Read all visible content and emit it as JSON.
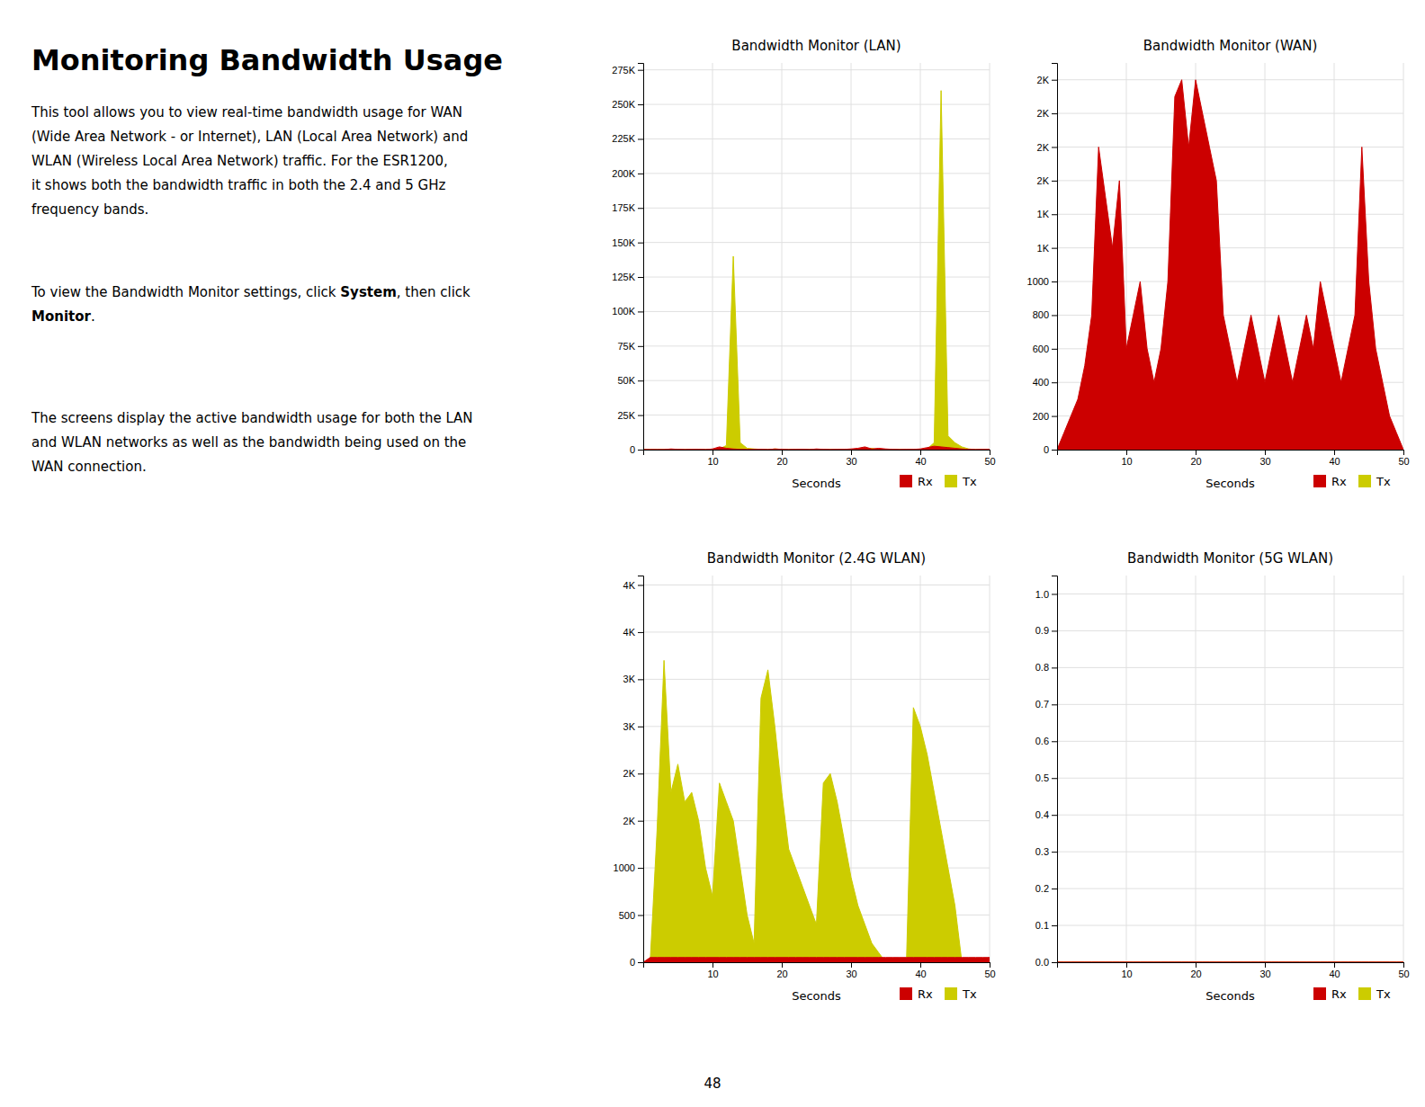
{
  "title": "Monitoring Bandwidth Usage",
  "paragraphs": [
    [
      [
        {
          "text": "This tool allows you to view real-time bandwidth usage for WAN",
          "bold": false
        }
      ],
      [
        {
          "text": "(Wide Area Network - or Internet), LAN (Local Area Network) and",
          "bold": false
        }
      ],
      [
        {
          "text": "WLAN (Wireless Local Area Network) traffic. For the ESR1200,",
          "bold": false
        }
      ],
      [
        {
          "text": "it shows both the bandwidth traffic in both the 2.4 and 5 GHz",
          "bold": false
        }
      ],
      [
        {
          "text": "frequency bands.",
          "bold": false
        }
      ]
    ],
    [
      [
        {
          "text": "To view the Bandwidth Monitor settings, click ",
          "bold": false
        },
        {
          "text": "System",
          "bold": true
        },
        {
          "text": ", then click",
          "bold": false
        }
      ],
      [
        {
          "text": "Monitor",
          "bold": true
        },
        {
          "text": ".",
          "bold": false
        }
      ]
    ],
    [
      [
        {
          "text": "The screens display the active bandwidth usage for both the LAN",
          "bold": false
        }
      ],
      [
        {
          "text": "and WLAN networks as well as the bandwidth being used on the",
          "bold": false
        }
      ],
      [
        {
          "text": "WAN connection.",
          "bold": false
        }
      ]
    ]
  ],
  "page_number": "48",
  "chart_data": [
    {
      "type": "area",
      "title": "Bandwidth Monitor (LAN)",
      "xlabel": "Seconds",
      "x": [
        0,
        1,
        2,
        3,
        4,
        5,
        6,
        7,
        8,
        9,
        10,
        11,
        12,
        13,
        14,
        15,
        16,
        17,
        18,
        19,
        20,
        21,
        22,
        23,
        24,
        25,
        26,
        27,
        28,
        29,
        30,
        31,
        32,
        33,
        34,
        35,
        36,
        37,
        38,
        39,
        40,
        41,
        42,
        43,
        44,
        45,
        46,
        47,
        48,
        49,
        50
      ],
      "series": [
        {
          "name": "Rx",
          "color": "#cc0000",
          "values": [
            0,
            0,
            0,
            0,
            500,
            200,
            0,
            100,
            200,
            0,
            500,
            2000,
            1000,
            500,
            200,
            0,
            100,
            200,
            0,
            500,
            200,
            0,
            100,
            200,
            0,
            500,
            200,
            0,
            100,
            200,
            500,
            1000,
            2000,
            500,
            1000,
            500,
            200,
            0,
            100,
            200,
            500,
            1500,
            2500,
            2000,
            1500,
            1000,
            500,
            200,
            0,
            100,
            200
          ]
        },
        {
          "name": "Tx",
          "color": "#cccc00",
          "values": [
            0,
            0,
            0,
            0,
            0,
            0,
            0,
            0,
            0,
            0,
            0,
            500,
            3000,
            140000,
            5000,
            1000,
            500,
            200,
            0,
            500,
            200,
            0,
            0,
            0,
            0,
            0,
            0,
            0,
            0,
            0,
            0,
            0,
            500,
            1000,
            0,
            0,
            0,
            0,
            0,
            0,
            0,
            500,
            5000,
            260000,
            10000,
            5000,
            2000,
            500,
            0,
            0,
            0
          ]
        }
      ],
      "xlim": [
        0,
        50
      ],
      "xticks": [
        10,
        20,
        30,
        40,
        50
      ],
      "ylim": [
        0,
        280000
      ],
      "yticks": [
        0,
        {
          "value": 25000,
          "label": "25K"
        },
        {
          "value": 50000,
          "label": "50K"
        },
        {
          "value": 75000,
          "label": "75K"
        },
        {
          "value": 100000,
          "label": "100K"
        },
        {
          "value": 125000,
          "label": "125K"
        },
        {
          "value": 150000,
          "label": "150K"
        },
        {
          "value": 175000,
          "label": "175K"
        },
        {
          "value": 200000,
          "label": "200K"
        },
        {
          "value": 225000,
          "label": "225K"
        },
        {
          "value": 250000,
          "label": "250K"
        },
        {
          "value": 275000,
          "label": "275K"
        }
      ],
      "grid": true,
      "legend": "lower right"
    },
    {
      "type": "area",
      "title": "Bandwidth Monitor (WAN)",
      "xlabel": "Seconds",
      "x": [
        0,
        1,
        2,
        3,
        4,
        5,
        6,
        7,
        8,
        9,
        10,
        11,
        12,
        13,
        14,
        15,
        16,
        17,
        18,
        19,
        20,
        21,
        22,
        23,
        24,
        25,
        26,
        27,
        28,
        29,
        30,
        31,
        32,
        33,
        34,
        35,
        36,
        37,
        38,
        39,
        40,
        41,
        42,
        43,
        44,
        45,
        46,
        47,
        48,
        49,
        50
      ],
      "series": [
        {
          "name": "Rx",
          "color": "#cc0000",
          "values": [
            0,
            100,
            200,
            300,
            500,
            800,
            1800,
            1500,
            1200,
            1600,
            600,
            800,
            1000,
            600,
            400,
            600,
            1000,
            2100,
            2200,
            1800,
            2200,
            2000,
            1800,
            1600,
            800,
            600,
            400,
            600,
            800,
            600,
            400,
            600,
            800,
            600,
            400,
            600,
            800,
            600,
            1000,
            800,
            600,
            400,
            600,
            800,
            1800,
            1000,
            600,
            400,
            200,
            100,
            0
          ]
        },
        {
          "name": "Tx",
          "color": "#cccc00",
          "values": [
            0,
            0,
            0,
            50,
            100,
            400,
            400,
            300,
            250,
            250,
            100,
            100,
            100,
            100,
            100,
            100,
            100,
            100,
            200,
            200,
            100,
            100,
            100,
            100,
            100,
            100,
            100,
            100,
            100,
            100,
            100,
            100,
            100,
            100,
            100,
            100,
            100,
            100,
            100,
            100,
            100,
            100,
            100,
            100,
            400,
            200,
            100,
            50,
            0,
            0,
            0
          ]
        }
      ],
      "xlim": [
        0,
        50
      ],
      "xticks": [
        10,
        20,
        30,
        40,
        50
      ],
      "ylim": [
        0,
        2300
      ],
      "yticks": [
        0,
        200,
        400,
        600,
        800,
        1000,
        {
          "value": 1200,
          "label": "1K"
        },
        {
          "value": 1400,
          "label": "1K"
        },
        {
          "value": 1600,
          "label": "2K"
        },
        {
          "value": 1800,
          "label": "2K"
        },
        {
          "value": 2000,
          "label": "2K"
        },
        {
          "value": 2200,
          "label": "2K"
        }
      ],
      "grid": true,
      "legend": "lower right"
    },
    {
      "type": "area",
      "title": "Bandwidth Monitor (2.4G WLAN)",
      "xlabel": "Seconds",
      "x": [
        0,
        1,
        2,
        3,
        4,
        5,
        6,
        7,
        8,
        9,
        10,
        11,
        12,
        13,
        14,
        15,
        16,
        17,
        18,
        19,
        20,
        21,
        22,
        23,
        24,
        25,
        26,
        27,
        28,
        29,
        30,
        31,
        32,
        33,
        34,
        35,
        36,
        37,
        38,
        39,
        40,
        41,
        42,
        43,
        44,
        45,
        46,
        47,
        48,
        49,
        50
      ],
      "series": [
        {
          "name": "Rx",
          "color": "#cc0000",
          "values": [
            0,
            50,
            50,
            50,
            50,
            50,
            50,
            50,
            50,
            50,
            50,
            50,
            50,
            50,
            50,
            50,
            50,
            50,
            50,
            50,
            50,
            50,
            50,
            50,
            50,
            50,
            50,
            50,
            50,
            50,
            50,
            50,
            50,
            50,
            50,
            50,
            50,
            50,
            50,
            50,
            50,
            50,
            50,
            50,
            50,
            50,
            50,
            50,
            50,
            50,
            50
          ]
        },
        {
          "name": "Tx",
          "color": "#cccc00",
          "values": [
            0,
            0,
            1400,
            3200,
            1800,
            2100,
            1700,
            1800,
            1500,
            1000,
            700,
            1900,
            1700,
            1500,
            1000,
            500,
            200,
            2800,
            3100,
            2500,
            1800,
            1200,
            1000,
            800,
            600,
            400,
            1900,
            2000,
            1700,
            1300,
            900,
            600,
            400,
            200,
            100,
            0,
            0,
            0,
            0,
            2700,
            2500,
            2200,
            1800,
            1400,
            1000,
            600,
            0,
            0,
            0,
            0,
            0
          ]
        }
      ],
      "xlim": [
        0,
        50
      ],
      "xticks": [
        10,
        20,
        30,
        40,
        50
      ],
      "ylim": [
        0,
        4100
      ],
      "yticks": [
        0,
        500,
        1000,
        {
          "value": 1500,
          "label": "2K"
        },
        {
          "value": 2000,
          "label": "2K"
        },
        {
          "value": 2500,
          "label": "3K"
        },
        {
          "value": 3000,
          "label": "3K"
        },
        {
          "value": 3500,
          "label": "4K"
        },
        {
          "value": 4000,
          "label": "4K"
        }
      ],
      "grid": true,
      "legend": "lower right"
    },
    {
      "type": "area",
      "title": "Bandwidth Monitor (5G WLAN)",
      "xlabel": "Seconds",
      "x": [
        0,
        1,
        2,
        3,
        4,
        5,
        6,
        7,
        8,
        9,
        10,
        11,
        12,
        13,
        14,
        15,
        16,
        17,
        18,
        19,
        20,
        21,
        22,
        23,
        24,
        25,
        26,
        27,
        28,
        29,
        30,
        31,
        32,
        33,
        34,
        35,
        36,
        37,
        38,
        39,
        40,
        41,
        42,
        43,
        44,
        45,
        46,
        47,
        48,
        49,
        50
      ],
      "series": [
        {
          "name": "Rx",
          "color": "#cc0000",
          "values": [
            0,
            0,
            0,
            0,
            0,
            0,
            0,
            0,
            0,
            0,
            0,
            0,
            0,
            0,
            0,
            0,
            0,
            0,
            0,
            0,
            0,
            0,
            0,
            0,
            0,
            0,
            0,
            0,
            0,
            0,
            0,
            0,
            0,
            0,
            0,
            0,
            0,
            0,
            0,
            0,
            0,
            0,
            0,
            0,
            0,
            0,
            0,
            0,
            0,
            0,
            0
          ]
        },
        {
          "name": "Tx",
          "color": "#cccc00",
          "values": [
            0,
            0,
            0,
            0,
            0,
            0,
            0,
            0,
            0,
            0,
            0,
            0,
            0,
            0,
            0,
            0,
            0,
            0,
            0,
            0,
            0,
            0,
            0,
            0,
            0,
            0,
            0,
            0,
            0,
            0,
            0,
            0,
            0,
            0,
            0,
            0,
            0,
            0,
            0,
            0,
            0,
            0,
            0,
            0,
            0,
            0,
            0,
            0,
            0,
            0,
            0
          ]
        }
      ],
      "xlim": [
        0,
        50
      ],
      "xticks": [
        10,
        20,
        30,
        40,
        50
      ],
      "ylim": [
        0,
        1.05
      ],
      "yticks": [
        {
          "value": 0.0,
          "label": "0.0"
        },
        0.1,
        0.2,
        0.3,
        0.4,
        0.5,
        0.6,
        0.7,
        0.8,
        0.9,
        {
          "value": 1.0,
          "label": "1.0"
        }
      ],
      "grid": true,
      "legend": "lower right"
    }
  ]
}
